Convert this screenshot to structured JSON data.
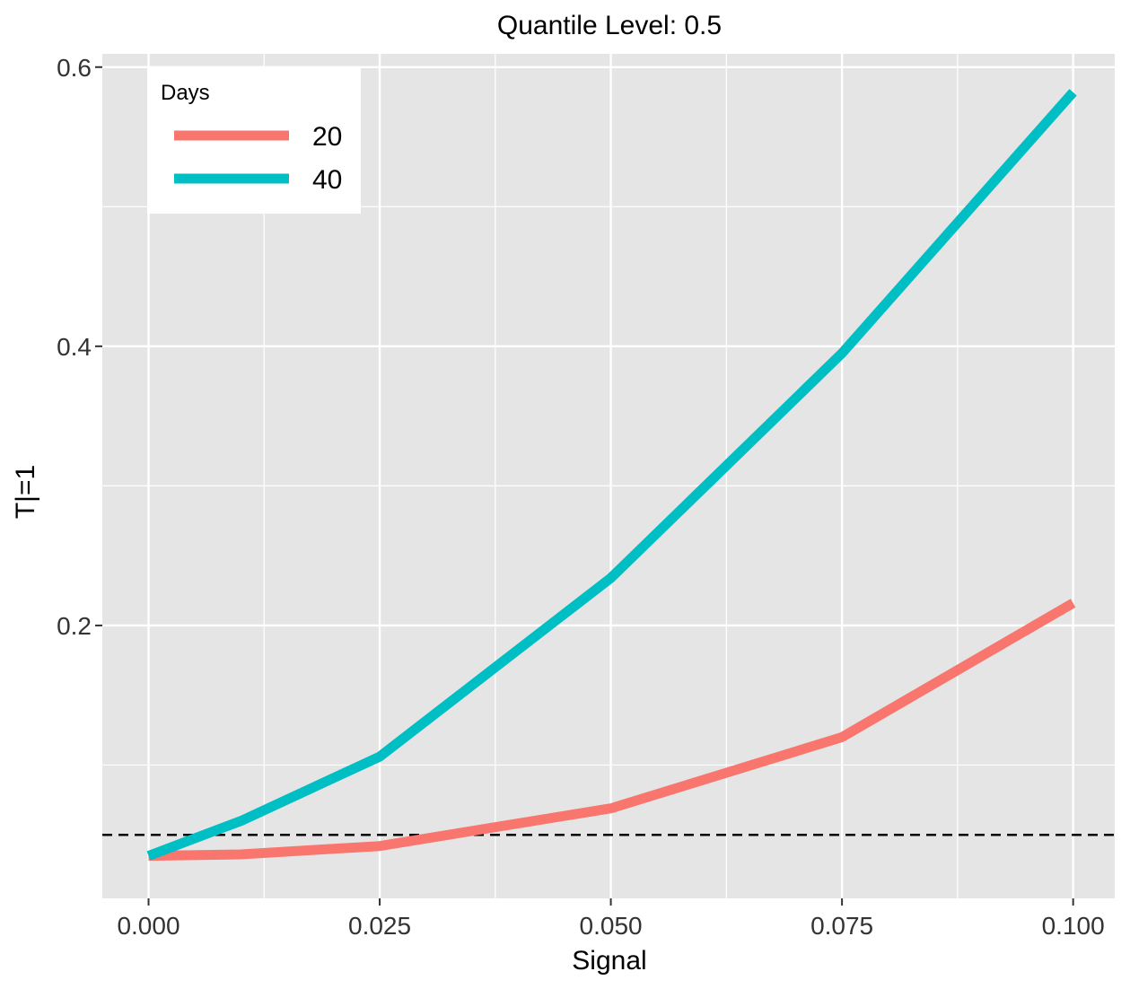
{
  "chart_data": {
    "type": "line",
    "title": "Quantile Level: 0.5",
    "xlabel": "Signal",
    "ylabel": "T|=1",
    "xlim": [
      -0.005,
      0.1045
    ],
    "ylim": [
      0.0045,
      0.6095
    ],
    "x_ticks": [
      0.0,
      0.025,
      0.05,
      0.075,
      0.1
    ],
    "x_tick_labels": [
      "0.000",
      "0.025",
      "0.050",
      "0.075",
      "0.100"
    ],
    "y_ticks": [
      0.2,
      0.4,
      0.6
    ],
    "y_tick_labels": [
      "0.2",
      "0.4",
      "0.6"
    ],
    "grid": true,
    "background": "#E5E5E5",
    "reference_line": {
      "y": 0.05,
      "style": "dashed",
      "color": "#000000"
    },
    "legend": {
      "title": "Days",
      "position": "top-left"
    },
    "x": [
      0.0,
      0.01,
      0.025,
      0.05,
      0.075,
      0.1
    ],
    "series": [
      {
        "name": "20",
        "color": "#F8766D",
        "values": [
          0.035,
          0.036,
          0.042,
          0.069,
          0.12,
          0.216
        ]
      },
      {
        "name": "40",
        "color": "#00BFC4",
        "values": [
          0.035,
          0.06,
          0.106,
          0.234,
          0.395,
          0.582
        ]
      }
    ]
  }
}
